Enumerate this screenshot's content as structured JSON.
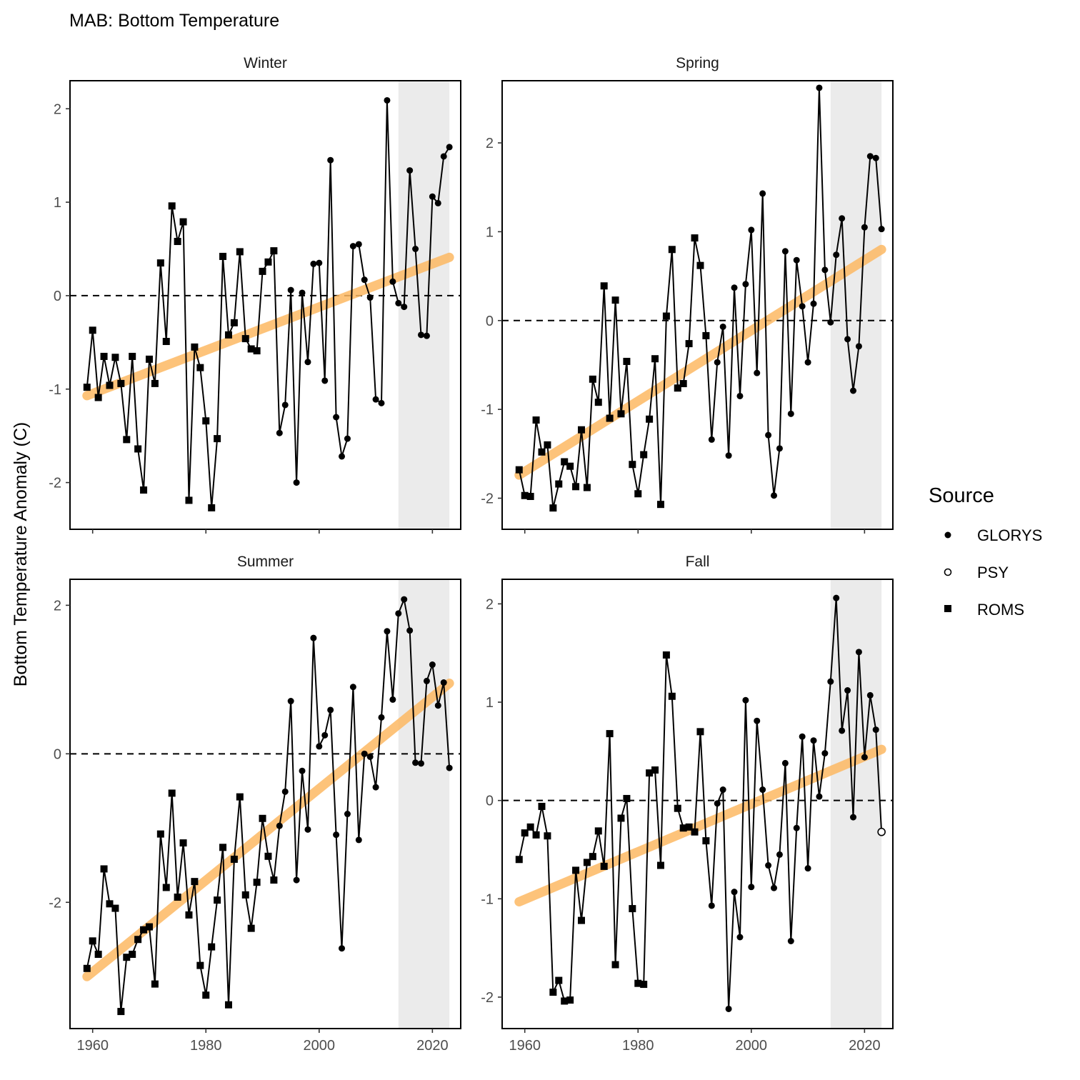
{
  "chart_data": {
    "type": "line",
    "title": "MAB: Bottom Temperature",
    "ylabel": "Bottom Temperature Anomaly (C)",
    "xlabel": "",
    "xlim": [
      1956,
      2025
    ],
    "x_ticks": [
      1960,
      1980,
      2000,
      2020
    ],
    "grid": false,
    "shaded_range": [
      2014,
      2023
    ],
    "colors": {
      "trend": "#FDB863",
      "shade": "#EBEBEB",
      "series": "#000000"
    },
    "legend": {
      "title": "Source",
      "position": "right",
      "entries": [
        {
          "label": "GLORYS",
          "shape": "filled-circle"
        },
        {
          "label": "PSY",
          "shape": "open-circle"
        },
        {
          "label": "ROMS",
          "shape": "filled-square"
        }
      ]
    },
    "panels": [
      {
        "name": "Winter",
        "ylim": [
          -2.5,
          2.3
        ],
        "y_ticks": [
          -2,
          -1,
          0,
          1,
          2
        ],
        "trend": [
          [
            1959,
            -1.07
          ],
          [
            2023,
            0.41
          ]
        ],
        "x": [
          1959,
          1960,
          1961,
          1962,
          1963,
          1964,
          1965,
          1966,
          1967,
          1968,
          1969,
          1970,
          1971,
          1972,
          1973,
          1974,
          1975,
          1976,
          1977,
          1978,
          1979,
          1980,
          1981,
          1982,
          1983,
          1984,
          1985,
          1986,
          1987,
          1988,
          1989,
          1990,
          1991,
          1992,
          1993,
          1994,
          1995,
          1996,
          1997,
          1998,
          1999,
          2000,
          2001,
          2002,
          2003,
          2004,
          2005,
          2006,
          2007,
          2008,
          2009,
          2010,
          2011,
          2012,
          2013,
          2014,
          2015,
          2016,
          2017,
          2018,
          2019,
          2020,
          2021,
          2022,
          2023
        ],
        "values": [
          -0.98,
          -0.37,
          -1.09,
          -0.65,
          -0.96,
          -0.66,
          -0.94,
          -1.54,
          -0.65,
          -1.64,
          -2.08,
          -0.68,
          -0.94,
          0.35,
          -0.49,
          0.96,
          0.58,
          0.79,
          -2.19,
          -0.55,
          -0.77,
          -1.34,
          -2.27,
          -1.53,
          0.42,
          -0.42,
          -0.29,
          0.47,
          -0.46,
          -0.57,
          -0.59,
          0.26,
          0.36,
          0.48,
          -1.47,
          -1.17,
          0.06,
          -2.0,
          0.03,
          -0.71,
          0.34,
          0.35,
          -0.91,
          1.45,
          -1.3,
          -1.72,
          -1.53,
          0.53,
          0.55,
          0.17,
          -0.02,
          -1.11,
          -1.15,
          2.09,
          0.15,
          -0.08,
          -0.12,
          1.34,
          0.5,
          -0.42,
          -0.43,
          1.06,
          0.99,
          1.49,
          1.59
        ],
        "source": [
          "ROMS",
          "ROMS",
          "ROMS",
          "ROMS",
          "ROMS",
          "ROMS",
          "ROMS",
          "ROMS",
          "ROMS",
          "ROMS",
          "ROMS",
          "ROMS",
          "ROMS",
          "ROMS",
          "ROMS",
          "ROMS",
          "ROMS",
          "ROMS",
          "ROMS",
          "ROMS",
          "ROMS",
          "ROMS",
          "ROMS",
          "ROMS",
          "ROMS",
          "ROMS",
          "ROMS",
          "ROMS",
          "ROMS",
          "ROMS",
          "ROMS",
          "ROMS",
          "ROMS",
          "ROMS",
          "GLORYS",
          "GLORYS",
          "GLORYS",
          "GLORYS",
          "GLORYS",
          "GLORYS",
          "GLORYS",
          "GLORYS",
          "GLORYS",
          "GLORYS",
          "GLORYS",
          "GLORYS",
          "GLORYS",
          "GLORYS",
          "GLORYS",
          "GLORYS",
          "GLORYS",
          "GLORYS",
          "GLORYS",
          "GLORYS",
          "GLORYS",
          "GLORYS",
          "GLORYS",
          "GLORYS",
          "GLORYS",
          "GLORYS",
          "GLORYS",
          "GLORYS",
          "GLORYS",
          "GLORYS",
          "GLORYS"
        ]
      },
      {
        "name": "Spring",
        "ylim": [
          -2.35,
          2.7
        ],
        "y_ticks": [
          -2,
          -1,
          0,
          1,
          2
        ],
        "trend": [
          [
            1959,
            -1.74
          ],
          [
            2023,
            0.8
          ]
        ],
        "x": [
          1959,
          1960,
          1961,
          1962,
          1963,
          1964,
          1965,
          1966,
          1967,
          1968,
          1969,
          1970,
          1971,
          1972,
          1973,
          1974,
          1975,
          1976,
          1977,
          1978,
          1979,
          1980,
          1981,
          1982,
          1983,
          1984,
          1985,
          1986,
          1987,
          1988,
          1989,
          1990,
          1991,
          1992,
          1993,
          1994,
          1995,
          1996,
          1997,
          1998,
          1999,
          2000,
          2001,
          2002,
          2003,
          2004,
          2005,
          2006,
          2007,
          2008,
          2009,
          2010,
          2011,
          2012,
          2013,
          2014,
          2015,
          2016,
          2017,
          2018,
          2019,
          2020,
          2021,
          2022,
          2023
        ],
        "values": [
          -1.68,
          -1.97,
          -1.98,
          -1.12,
          -1.48,
          -1.4,
          -2.11,
          -1.84,
          -1.59,
          -1.64,
          -1.87,
          -1.23,
          -1.88,
          -0.66,
          -0.92,
          0.39,
          -1.1,
          0.23,
          -1.05,
          -0.46,
          -1.62,
          -1.95,
          -1.51,
          -1.11,
          -0.43,
          -2.07,
          0.05,
          0.8,
          -0.76,
          -0.71,
          -0.26,
          0.93,
          0.62,
          -0.17,
          -1.34,
          -0.47,
          -0.07,
          -1.52,
          0.37,
          -0.85,
          0.41,
          1.02,
          -0.59,
          1.43,
          -1.29,
          -1.97,
          -1.44,
          0.78,
          -1.05,
          0.68,
          0.16,
          -0.47,
          0.19,
          2.62,
          0.57,
          -0.02,
          0.74,
          1.15,
          -0.21,
          -0.79,
          -0.29,
          1.05,
          1.85,
          1.83,
          1.03
        ],
        "source": [
          "ROMS",
          "ROMS",
          "ROMS",
          "ROMS",
          "ROMS",
          "ROMS",
          "ROMS",
          "ROMS",
          "ROMS",
          "ROMS",
          "ROMS",
          "ROMS",
          "ROMS",
          "ROMS",
          "ROMS",
          "ROMS",
          "ROMS",
          "ROMS",
          "ROMS",
          "ROMS",
          "ROMS",
          "ROMS",
          "ROMS",
          "ROMS",
          "ROMS",
          "ROMS",
          "ROMS",
          "ROMS",
          "ROMS",
          "ROMS",
          "ROMS",
          "ROMS",
          "ROMS",
          "ROMS",
          "GLORYS",
          "GLORYS",
          "GLORYS",
          "GLORYS",
          "GLORYS",
          "GLORYS",
          "GLORYS",
          "GLORYS",
          "GLORYS",
          "GLORYS",
          "GLORYS",
          "GLORYS",
          "GLORYS",
          "GLORYS",
          "GLORYS",
          "GLORYS",
          "GLORYS",
          "GLORYS",
          "GLORYS",
          "GLORYS",
          "GLORYS",
          "GLORYS",
          "GLORYS",
          "GLORYS",
          "GLORYS",
          "GLORYS",
          "GLORYS",
          "GLORYS",
          "GLORYS",
          "GLORYS",
          "GLORYS"
        ]
      },
      {
        "name": "Summer",
        "ylim": [
          -3.7,
          2.35
        ],
        "y_ticks": [
          -2,
          0,
          2
        ],
        "trend": [
          [
            1959,
            -3.0
          ],
          [
            2023,
            0.95
          ]
        ],
        "x": [
          1959,
          1960,
          1961,
          1962,
          1963,
          1964,
          1965,
          1966,
          1967,
          1968,
          1969,
          1970,
          1971,
          1972,
          1973,
          1974,
          1975,
          1976,
          1977,
          1978,
          1979,
          1980,
          1981,
          1982,
          1983,
          1984,
          1985,
          1986,
          1987,
          1988,
          1989,
          1990,
          1991,
          1992,
          1993,
          1994,
          1995,
          1996,
          1997,
          1998,
          1999,
          2000,
          2001,
          2002,
          2003,
          2004,
          2005,
          2006,
          2007,
          2008,
          2009,
          2010,
          2011,
          2012,
          2013,
          2014,
          2015,
          2016,
          2017,
          2018,
          2019,
          2020,
          2021,
          2022,
          2023
        ],
        "values": [
          -2.89,
          -2.52,
          -2.7,
          -1.55,
          -2.02,
          -2.08,
          -3.47,
          -2.74,
          -2.7,
          -2.5,
          -2.37,
          -2.33,
          -3.1,
          -1.08,
          -1.8,
          -0.53,
          -1.93,
          -1.2,
          -2.17,
          -1.72,
          -2.85,
          -3.25,
          -2.6,
          -1.97,
          -1.26,
          -3.38,
          -1.42,
          -0.58,
          -1.9,
          -2.35,
          -1.73,
          -0.87,
          -1.38,
          -1.7,
          -0.97,
          -0.51,
          0.71,
          -1.7,
          -0.23,
          -1.02,
          1.56,
          0.1,
          0.25,
          0.59,
          -1.09,
          -2.62,
          -0.81,
          0.9,
          -1.16,
          0.0,
          -0.04,
          -0.45,
          0.49,
          1.65,
          0.73,
          1.89,
          2.08,
          1.66,
          -0.12,
          -0.13,
          0.98,
          1.2,
          0.65,
          0.96,
          -0.19
        ],
        "source": [
          "ROMS",
          "ROMS",
          "ROMS",
          "ROMS",
          "ROMS",
          "ROMS",
          "ROMS",
          "ROMS",
          "ROMS",
          "ROMS",
          "ROMS",
          "ROMS",
          "ROMS",
          "ROMS",
          "ROMS",
          "ROMS",
          "ROMS",
          "ROMS",
          "ROMS",
          "ROMS",
          "ROMS",
          "ROMS",
          "ROMS",
          "ROMS",
          "ROMS",
          "ROMS",
          "ROMS",
          "ROMS",
          "ROMS",
          "ROMS",
          "ROMS",
          "ROMS",
          "ROMS",
          "ROMS",
          "GLORYS",
          "GLORYS",
          "GLORYS",
          "GLORYS",
          "GLORYS",
          "GLORYS",
          "GLORYS",
          "GLORYS",
          "GLORYS",
          "GLORYS",
          "GLORYS",
          "GLORYS",
          "GLORYS",
          "GLORYS",
          "GLORYS",
          "GLORYS",
          "GLORYS",
          "GLORYS",
          "GLORYS",
          "GLORYS",
          "GLORYS",
          "GLORYS",
          "GLORYS",
          "GLORYS",
          "GLORYS",
          "GLORYS",
          "GLORYS",
          "GLORYS",
          "GLORYS",
          "GLORYS",
          "GLORYS"
        ]
      },
      {
        "name": "Fall",
        "ylim": [
          -2.32,
          2.25
        ],
        "y_ticks": [
          -2,
          -1,
          0,
          1,
          2
        ],
        "trend": [
          [
            1959,
            -1.03
          ],
          [
            2023,
            0.52
          ]
        ],
        "x": [
          1959,
          1960,
          1961,
          1962,
          1963,
          1964,
          1965,
          1966,
          1967,
          1968,
          1969,
          1970,
          1971,
          1972,
          1973,
          1974,
          1975,
          1976,
          1977,
          1978,
          1979,
          1980,
          1981,
          1982,
          1983,
          1984,
          1985,
          1986,
          1987,
          1988,
          1989,
          1990,
          1991,
          1992,
          1993,
          1994,
          1995,
          1996,
          1997,
          1998,
          1999,
          2000,
          2001,
          2002,
          2003,
          2004,
          2005,
          2006,
          2007,
          2008,
          2009,
          2010,
          2011,
          2012,
          2013,
          2014,
          2015,
          2016,
          2017,
          2018,
          2019,
          2020,
          2021,
          2022,
          2023
        ],
        "values": [
          -0.6,
          -0.33,
          -0.27,
          -0.35,
          -0.06,
          -0.36,
          -1.95,
          -1.83,
          -2.04,
          -2.03,
          -0.71,
          -1.22,
          -0.63,
          -0.57,
          -0.31,
          -0.67,
          0.68,
          -1.67,
          -0.18,
          0.02,
          -1.1,
          -1.86,
          -1.87,
          0.28,
          0.31,
          -0.66,
          1.48,
          1.06,
          -0.08,
          -0.28,
          -0.27,
          -0.32,
          0.7,
          -0.41,
          -1.07,
          -0.03,
          0.11,
          -2.12,
          -0.93,
          -1.39,
          1.02,
          -0.88,
          0.81,
          0.11,
          -0.66,
          -0.89,
          -0.55,
          0.38,
          -1.43,
          -0.28,
          0.65,
          -0.69,
          0.61,
          0.04,
          0.48,
          1.21,
          2.06,
          0.71,
          1.12,
          -0.17,
          1.51,
          0.44,
          1.07,
          0.72,
          -0.32
        ],
        "source": [
          "ROMS",
          "ROMS",
          "ROMS",
          "ROMS",
          "ROMS",
          "ROMS",
          "ROMS",
          "ROMS",
          "ROMS",
          "ROMS",
          "ROMS",
          "ROMS",
          "ROMS",
          "ROMS",
          "ROMS",
          "ROMS",
          "ROMS",
          "ROMS",
          "ROMS",
          "ROMS",
          "ROMS",
          "ROMS",
          "ROMS",
          "ROMS",
          "ROMS",
          "ROMS",
          "ROMS",
          "ROMS",
          "ROMS",
          "ROMS",
          "ROMS",
          "ROMS",
          "ROMS",
          "ROMS",
          "GLORYS",
          "GLORYS",
          "GLORYS",
          "GLORYS",
          "GLORYS",
          "GLORYS",
          "GLORYS",
          "GLORYS",
          "GLORYS",
          "GLORYS",
          "GLORYS",
          "GLORYS",
          "GLORYS",
          "GLORYS",
          "GLORYS",
          "GLORYS",
          "GLORYS",
          "GLORYS",
          "GLORYS",
          "GLORYS",
          "GLORYS",
          "GLORYS",
          "GLORYS",
          "GLORYS",
          "GLORYS",
          "GLORYS",
          "GLORYS",
          "GLORYS",
          "GLORYS",
          "GLORYS",
          "PSY"
        ]
      }
    ]
  }
}
